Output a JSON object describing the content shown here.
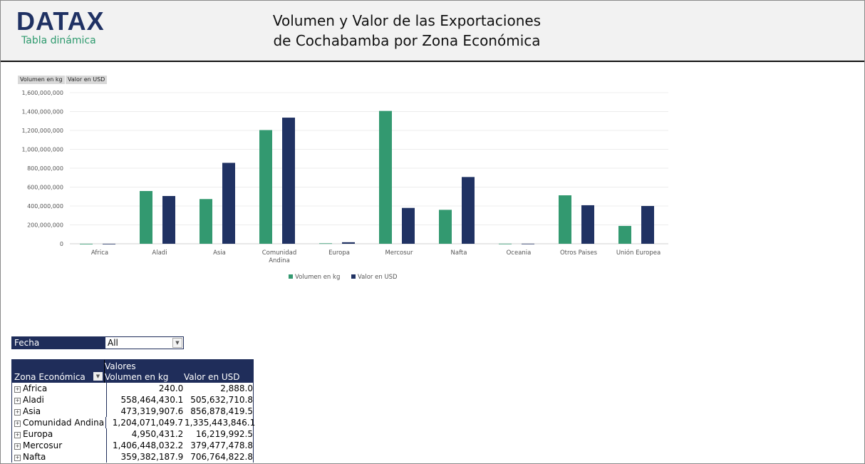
{
  "header": {
    "logo": "DATAX",
    "subtitle": "Tabla dinámica",
    "title_line1": "Volumen y Valor de las Exportaciones",
    "title_line2": "de Cochabamba por Zona Económica"
  },
  "field_buttons": [
    "Volumen en kg",
    "Valor en USD"
  ],
  "colors": {
    "volumen": "#339970",
    "valor": "#203263",
    "header_bg": "#f2f2f2",
    "table_header": "#1f2d5a"
  },
  "chart_data": {
    "type": "bar",
    "categories": [
      "Africa",
      "Aladi",
      "Asia",
      "Comunidad Andina",
      "Europa",
      "Mercosur",
      "Nafta",
      "Oceania",
      "Otros Paises",
      "Unión Europea"
    ],
    "series": [
      {
        "name": "Volumen en kg",
        "values": [
          240,
          558464430.1,
          473319907.6,
          1204071049.7,
          4950431.2,
          1406448032.2,
          359382187.9,
          1000000,
          513000000,
          189000000
        ]
      },
      {
        "name": "Valor en USD",
        "values": [
          2888,
          505632710.8,
          856878419.5,
          1335443846.1,
          16219992.5,
          379477478.8,
          706764822.8,
          1000000,
          408000000,
          400000000
        ]
      }
    ],
    "yticks": [
      "0",
      "200,000,000",
      "400,000,000",
      "600,000,000",
      "800,000,000",
      "1,000,000,000",
      "1,200,000,000",
      "1,400,000,000",
      "1,600,000,000"
    ],
    "ylim": [
      0,
      1600000000
    ],
    "grid": true,
    "legend": "bottom"
  },
  "filter": {
    "label": "Fecha",
    "value": "All"
  },
  "pivot": {
    "values_label": "Valores",
    "columns": [
      "Zona Económica",
      "Volumen en kg",
      "Valor en USD"
    ],
    "rows": [
      {
        "zona": "Africa",
        "vol": "240.0",
        "val": "2,888.0"
      },
      {
        "zona": "Aladi",
        "vol": "558,464,430.1",
        "val": "505,632,710.8"
      },
      {
        "zona": "Asia",
        "vol": "473,319,907.6",
        "val": "856,878,419.5"
      },
      {
        "zona": "Comunidad Andina",
        "vol": "1,204,071,049.7",
        "val": "1,335,443,846.1"
      },
      {
        "zona": "Europa",
        "vol": "4,950,431.2",
        "val": "16,219,992.5"
      },
      {
        "zona": "Mercosur",
        "vol": "1,406,448,032.2",
        "val": "379,477,478.8"
      },
      {
        "zona": "Nafta",
        "vol": "359,382,187.9",
        "val": "706,764,822.8"
      }
    ]
  }
}
